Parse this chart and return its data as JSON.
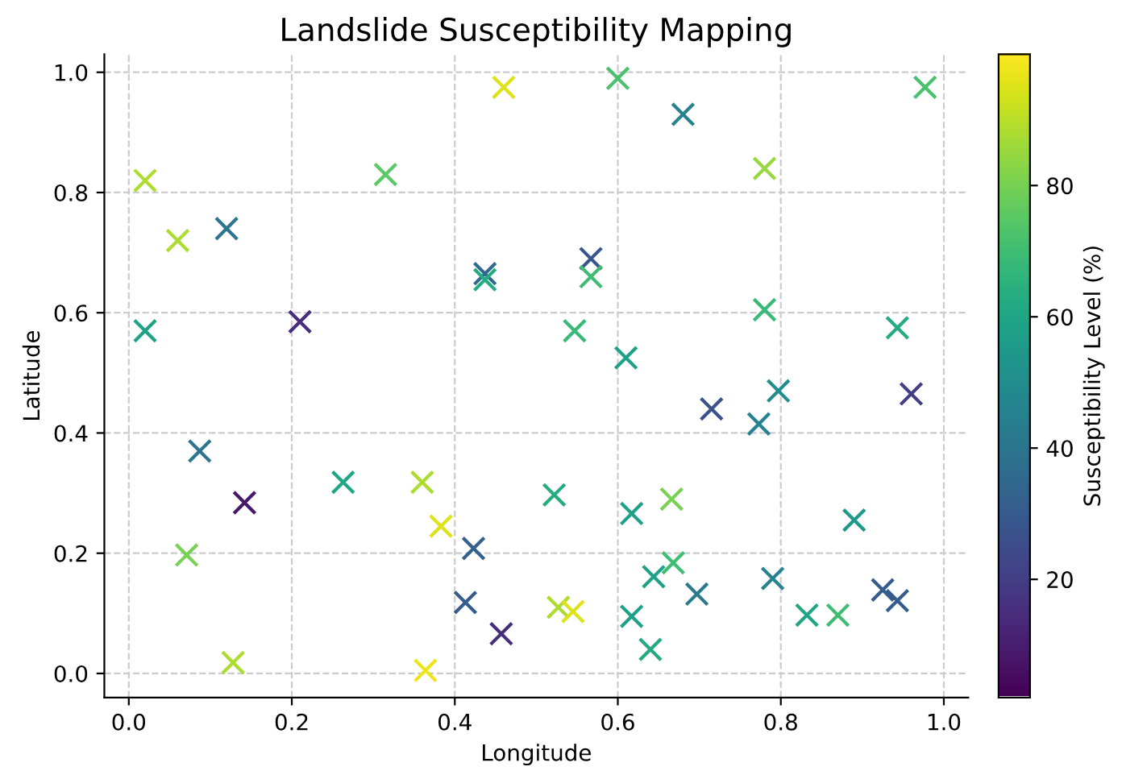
{
  "chart_data": {
    "type": "scatter",
    "title": "Landslide Susceptibility Mapping",
    "xlabel": "Longitude",
    "ylabel": "Latitude",
    "clabel": "Susceptibility Level (%)",
    "x": [
      0.02,
      0.06,
      0.12,
      0.02,
      0.21,
      0.315,
      0.46,
      0.437,
      0.437,
      0.6,
      0.68,
      0.78,
      0.977,
      0.567,
      0.567,
      0.547,
      0.78,
      0.61,
      0.943,
      0.96,
      0.797,
      0.773,
      0.715,
      0.087,
      0.142,
      0.071,
      0.128,
      0.263,
      0.36,
      0.383,
      0.423,
      0.413,
      0.457,
      0.364,
      0.522,
      0.617,
      0.666,
      0.668,
      0.644,
      0.697,
      0.617,
      0.64,
      0.527,
      0.545,
      0.79,
      0.832,
      0.87,
      0.89,
      0.925,
      0.943
    ],
    "values": [
      0.82,
      0.72,
      0.74,
      0.57,
      0.585,
      0.83,
      0.975,
      0.665,
      0.655,
      0.99,
      0.93,
      0.84,
      0.975,
      0.69,
      0.66,
      0.57,
      0.605,
      0.525,
      0.575,
      0.465,
      0.47,
      0.415,
      0.44,
      0.37,
      0.284,
      0.197,
      0.018,
      0.318,
      0.318,
      0.245,
      0.208,
      0.118,
      0.066,
      0.005,
      0.297,
      0.266,
      0.29,
      0.184,
      0.161,
      0.132,
      0.095,
      0.04,
      0.11,
      0.103,
      0.158,
      0.097,
      0.097,
      0.255,
      0.139,
      0.121
    ],
    "cvalues": [
      88,
      88,
      40,
      58,
      15,
      75,
      95,
      35,
      62,
      72,
      45,
      85,
      72,
      28,
      70,
      68,
      68,
      58,
      62,
      20,
      50,
      45,
      27,
      40,
      8,
      80,
      88,
      60,
      88,
      95,
      32,
      30,
      15,
      97,
      62,
      58,
      80,
      70,
      58,
      42,
      58,
      62,
      88,
      95,
      45,
      60,
      70,
      55,
      30,
      30
    ],
    "clim": [
      2,
      100
    ],
    "cticks": [
      20,
      40,
      60,
      80
    ],
    "xlim": [
      -0.03,
      1.03
    ],
    "ylim": [
      -0.04,
      1.03
    ],
    "xticks": [
      {
        "value": 0,
        "label": "0.0"
      },
      0.2,
      0.4,
      0.6,
      0.8,
      {
        "value": 1,
        "label": "1.0"
      }
    ],
    "yticks": [
      {
        "value": 0,
        "label": "0.0"
      },
      0.2,
      0.4,
      0.6,
      0.8,
      {
        "value": 1,
        "label": "1.0"
      }
    ],
    "marker": "cross",
    "grid": true
  }
}
